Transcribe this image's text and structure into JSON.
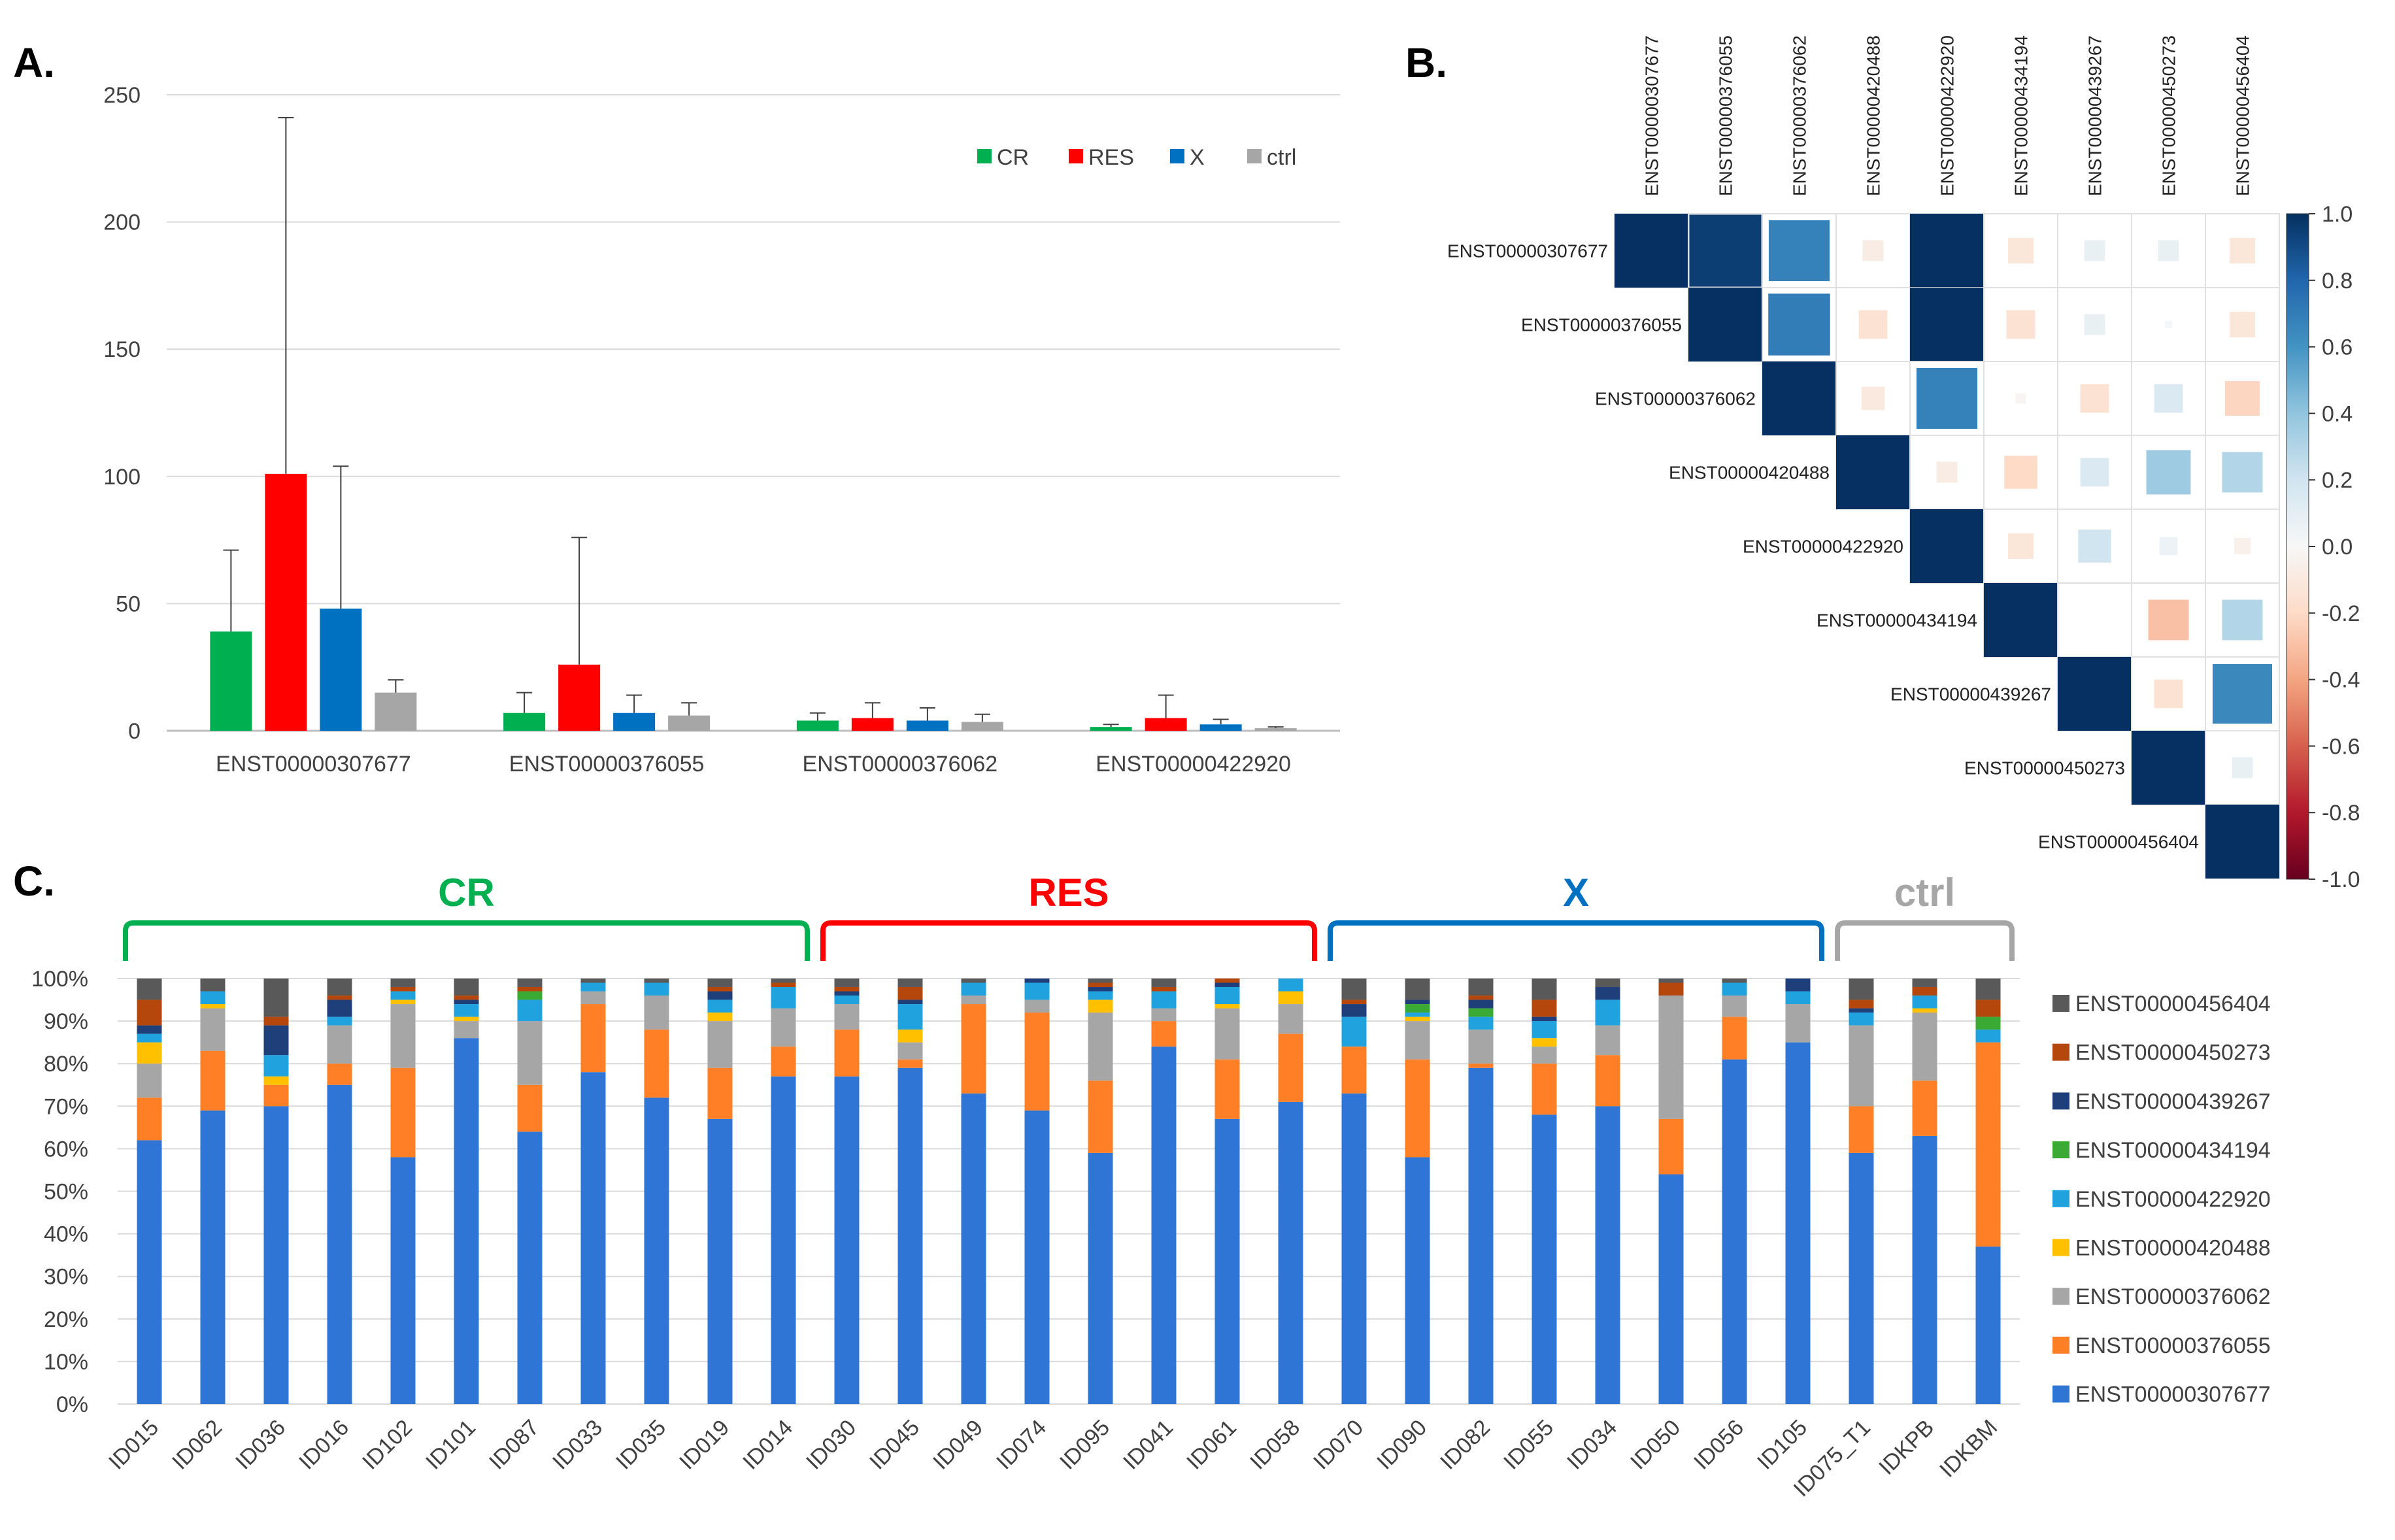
{
  "panels": {
    "a": "A.",
    "b": "B.",
    "c": "C."
  },
  "chart_data": [
    {
      "type": "bar",
      "title": "",
      "categories": [
        "ENST00000307677",
        "ENST00000376055",
        "ENST00000376062",
        "ENST00000422920"
      ],
      "series": [
        {
          "name": "CR",
          "color": "#00b050",
          "values": [
            39,
            7,
            4,
            1.5
          ],
          "errors": [
            32,
            8,
            3,
            1
          ]
        },
        {
          "name": "RES",
          "color": "#ff0000",
          "values": [
            101,
            26,
            5,
            5
          ],
          "errors": [
            140,
            50,
            6,
            9
          ]
        },
        {
          "name": "X",
          "color": "#0070c0",
          "values": [
            48,
            7,
            4,
            2.5
          ],
          "errors": [
            56,
            7,
            5,
            2
          ]
        },
        {
          "name": "ctrl",
          "color": "#a6a6a6",
          "values": [
            15,
            6,
            3.5,
            1
          ],
          "errors": [
            5,
            5,
            3,
            0.5
          ]
        }
      ],
      "ylim": [
        0,
        250
      ],
      "yticks": [
        "0",
        "50",
        "100",
        "150",
        "200",
        "250"
      ],
      "legend_position": "top-right"
    },
    {
      "type": "heatmap",
      "labels": [
        "ENST00000307677",
        "ENST00000376055",
        "ENST00000376062",
        "ENST00000420488",
        "ENST00000422920",
        "ENST00000434194",
        "ENST00000439267",
        "ENST00000450273",
        "ENST00000456404"
      ],
      "matrix": [
        [
          1.0,
          0.95,
          0.68,
          -0.08,
          1.0,
          -0.12,
          0.08,
          0.08,
          -0.12
        ],
        [
          0.95,
          1.0,
          0.7,
          -0.15,
          1.0,
          -0.15,
          0.08,
          0.01,
          -0.12
        ],
        [
          0.68,
          0.7,
          1.0,
          -0.1,
          0.68,
          -0.02,
          -0.15,
          0.15,
          -0.22
        ],
        [
          -0.08,
          -0.15,
          -0.1,
          1.0,
          -0.08,
          -0.2,
          0.15,
          0.36,
          0.3
        ],
        [
          1.0,
          1.0,
          0.68,
          -0.08,
          1.0,
          -0.12,
          0.2,
          0.06,
          -0.05
        ],
        [
          -0.12,
          -0.15,
          -0.02,
          -0.2,
          -0.12,
          1.0,
          0.0,
          -0.3,
          0.3
        ],
        [
          0.08,
          0.08,
          -0.15,
          0.15,
          0.2,
          0.0,
          1.0,
          -0.15,
          0.65
        ],
        [
          0.08,
          0.01,
          0.15,
          0.36,
          0.06,
          -0.3,
          -0.15,
          1.0,
          0.08
        ],
        [
          -0.12,
          -0.12,
          -0.22,
          0.3,
          -0.05,
          0.3,
          0.65,
          0.08,
          1.0
        ]
      ],
      "colorbar_ticks": [
        "1.0",
        "0.8",
        "0.6",
        "0.4",
        "0.2",
        "0.0",
        "-0.2",
        "-0.4",
        "-0.6",
        "-0.8",
        "-1.0"
      ],
      "colorbar_range": [
        -1,
        1
      ]
    },
    {
      "type": "bar",
      "stacked": true,
      "percent": true,
      "categories": [
        "ID015",
        "ID062",
        "ID036",
        "ID016",
        "ID102",
        "ID101",
        "ID087",
        "ID033",
        "ID035",
        "ID019",
        "ID014",
        "ID030",
        "ID045",
        "ID049",
        "ID074",
        "ID095",
        "ID041",
        "ID061",
        "ID058",
        "ID070",
        "ID090",
        "ID082",
        "ID055",
        "ID034",
        "ID050",
        "ID056",
        "ID105",
        "ID075_T1",
        "IDKPB",
        "IDKBM"
      ],
      "series_order": [
        "ENST00000307677",
        "ENST00000376055",
        "ENST00000376062",
        "ENST00000420488",
        "ENST00000422920",
        "ENST00000434194",
        "ENST00000439267",
        "ENST00000450273",
        "ENST00000456404"
      ],
      "colors": [
        "#2e75d6",
        "#ff7f27",
        "#a6a6a6",
        "#ffc000",
        "#1fa2de",
        "#3aaa35",
        "#1f3f7a",
        "#b5470d",
        "#595959"
      ],
      "values": [
        [
          62,
          10,
          8,
          5,
          2,
          0,
          2,
          6,
          5
        ],
        [
          69,
          14,
          10,
          1,
          3,
          0,
          0,
          0,
          3
        ],
        [
          70,
          5,
          0,
          2,
          5,
          0,
          7,
          2,
          9
        ],
        [
          75,
          5,
          9,
          0,
          2,
          0,
          4,
          1,
          4
        ],
        [
          58,
          21,
          15,
          1,
          2,
          0,
          0,
          1,
          2
        ],
        [
          86,
          0,
          4,
          1,
          3,
          0,
          1,
          1,
          4
        ],
        [
          64,
          11,
          15,
          0,
          5,
          2,
          0,
          1,
          2
        ],
        [
          78,
          16,
          3,
          0,
          2,
          0,
          0,
          0,
          1
        ],
        [
          72,
          16,
          8,
          0,
          3,
          0,
          0,
          0,
          1
        ],
        [
          67,
          12,
          11,
          2,
          3,
          0,
          2,
          1,
          2
        ],
        [
          77,
          7,
          9,
          0,
          5,
          0,
          0,
          1,
          1
        ],
        [
          77,
          11,
          6,
          0,
          2,
          0,
          1,
          1,
          2
        ],
        [
          79,
          2,
          4,
          3,
          6,
          0,
          1,
          3,
          2
        ],
        [
          73,
          21,
          2,
          0,
          3,
          0,
          0,
          0,
          1
        ],
        [
          69,
          23,
          3,
          0,
          4,
          0,
          1,
          0,
          0
        ],
        [
          59,
          17,
          16,
          3,
          2,
          0,
          1,
          1,
          1
        ],
        [
          84,
          6,
          3,
          0,
          4,
          0,
          0,
          1,
          2
        ],
        [
          67,
          14,
          12,
          1,
          4,
          0,
          1,
          1,
          0
        ],
        [
          71,
          16,
          7,
          3,
          3,
          0,
          0,
          0,
          0
        ],
        [
          73,
          11,
          0,
          0,
          7,
          0,
          3,
          1,
          5
        ],
        [
          58,
          23,
          9,
          1,
          1,
          2,
          1,
          0,
          5
        ],
        [
          79,
          1,
          8,
          0,
          3,
          2,
          2,
          1,
          4
        ],
        [
          68,
          12,
          4,
          2,
          4,
          0,
          1,
          4,
          5
        ],
        [
          70,
          12,
          7,
          0,
          6,
          0,
          3,
          0,
          2
        ],
        [
          54,
          13,
          29,
          0,
          0,
          0,
          0,
          3,
          1
        ],
        [
          81,
          10,
          5,
          0,
          3,
          0,
          0,
          0,
          1
        ],
        [
          85,
          0,
          9,
          0,
          3,
          0,
          3,
          0,
          0
        ],
        [
          59,
          11,
          19,
          0,
          3,
          0,
          1,
          2,
          5
        ],
        [
          63,
          13,
          16,
          1,
          3,
          0,
          0,
          2,
          2
        ],
        [
          37,
          48,
          0,
          0,
          3,
          3,
          0,
          4,
          5
        ]
      ],
      "yticks": [
        "0%",
        "10%",
        "20%",
        "30%",
        "40%",
        "50%",
        "60%",
        "70%",
        "80%",
        "90%",
        "100%"
      ],
      "groups": [
        {
          "name": "CR",
          "color": "#00b050",
          "start": 0,
          "end": 10
        },
        {
          "name": "RES",
          "color": "#ff0000",
          "start": 11,
          "end": 18
        },
        {
          "name": "X",
          "color": "#0070c0",
          "start": 19,
          "end": 26
        },
        {
          "name": "ctrl",
          "color": "#a6a6a6",
          "start": 27,
          "end": 29
        }
      ],
      "legend_position": "right"
    }
  ]
}
